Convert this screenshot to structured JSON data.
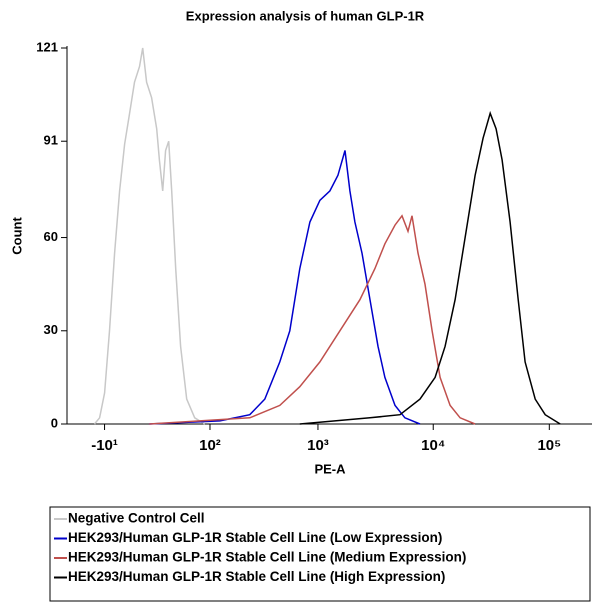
{
  "chart_data": {
    "type": "line",
    "title": "Expression analysis of human GLP-1R",
    "x_label": "PE-A",
    "y_label": "Count",
    "x_scale": "biexponential",
    "xlim": [
      -35,
      224000
    ],
    "xticks": [
      {
        "value": -10,
        "label": "-10¹"
      },
      {
        "value": 100,
        "label": "10²"
      },
      {
        "value": 1000,
        "label": "10³"
      },
      {
        "value": 10000,
        "label": "10⁴"
      },
      {
        "value": 100000,
        "label": "10⁵"
      }
    ],
    "ylim": [
      0,
      121
    ],
    "yticks": [
      0,
      30,
      60,
      91,
      121
    ],
    "series": [
      {
        "name": "Negative Control Cell",
        "color": "#c8c8c8",
        "x": [
          -16.7,
          -13.3,
          -10,
          -6.7,
          -3.3,
          0,
          2.1,
          4.4,
          6.9,
          9.7,
          11.6,
          14.2,
          17.7,
          21.7,
          24,
          27,
          29.8,
          32.9,
          36.2,
          40.8,
          47,
          55.6,
          68.7,
          88
        ],
        "values": [
          0,
          2,
          10,
          30,
          55,
          75,
          90,
          100,
          110,
          115,
          121,
          110,
          105,
          95,
          85,
          75,
          88,
          91,
          75,
          50,
          25,
          8,
          2,
          0
        ]
      },
      {
        "name": "HEK293/Human GLP-1R Stable Cell Line (Low Expression)",
        "color": "#0000cc",
        "x": [
          16,
          126,
          244,
          336,
          459,
          564,
          692,
          849,
          1040,
          1272,
          1494,
          1722,
          1902,
          2100,
          2420,
          2840,
          3330,
          3826,
          4680,
          5700,
          7690
        ],
        "values": [
          0,
          1,
          3,
          8,
          20,
          30,
          50,
          65,
          72,
          75,
          80,
          88,
          75,
          65,
          55,
          40,
          25,
          15,
          6,
          2,
          0
        ]
      },
      {
        "name": "HEK293/Human GLP-1R Stable Cell Line (Medium Expression)",
        "color": "#c0504d",
        "x": [
          16,
          78,
          244,
          459,
          692,
          1040,
          1556,
          2324,
          3136,
          3826,
          4680,
          5376,
          6060,
          6556,
          7394,
          8492,
          9776,
          11460,
          13980,
          17040,
          22940
        ],
        "values": [
          0,
          1,
          2,
          6,
          12,
          20,
          30,
          40,
          50,
          58,
          64,
          67,
          62,
          67,
          55,
          45,
          30,
          15,
          6,
          2,
          0
        ]
      },
      {
        "name": "HEK293/Human GLP-1R Stable Cell Line (High Expression)",
        "color": "#000000",
        "x": [
          692,
          2840,
          5168,
          7690,
          10380,
          12650,
          15430,
          18820,
          22940,
          26900,
          30960,
          34820,
          39240,
          46000,
          53940,
          61920,
          75660,
          92240,
          124200
        ],
        "values": [
          0,
          2,
          3,
          8,
          15,
          25,
          40,
          60,
          80,
          92,
          100,
          95,
          85,
          65,
          40,
          20,
          8,
          3,
          0
        ]
      }
    ],
    "legend": "bottom"
  }
}
